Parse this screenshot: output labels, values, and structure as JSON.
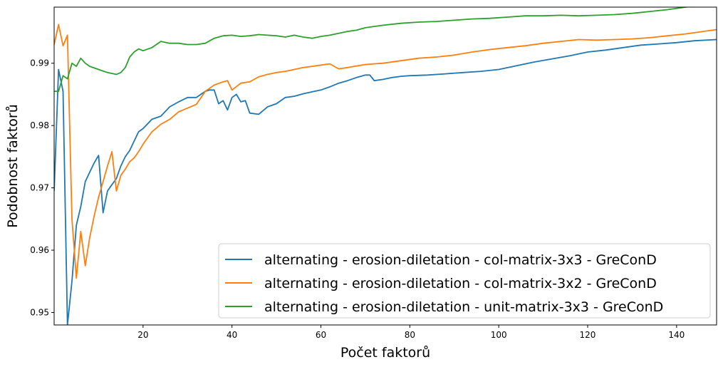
{
  "chart_data": {
    "type": "line",
    "title": "",
    "xlabel": "Počet faktorů",
    "ylabel": "Podobnost faktorů",
    "xlim": [
      0,
      149
    ],
    "ylim": [
      0.948,
      0.999
    ],
    "x_ticks": [
      20,
      40,
      60,
      80,
      100,
      120,
      140
    ],
    "y_ticks": [
      0.95,
      0.96,
      0.97,
      0.98,
      0.99
    ],
    "grid": false,
    "legend_position": "bottom-right",
    "series": [
      {
        "name": "alternating - erosion-diletation - col-matrix-3x3 - GreConD",
        "color": "#1f77b4",
        "x": [
          0,
          1,
          2,
          3,
          4,
          5,
          6,
          7,
          8,
          9,
          10,
          11,
          12,
          13,
          14,
          15,
          16,
          17,
          18,
          19,
          20,
          22,
          24,
          26,
          28,
          30,
          32,
          33,
          34,
          35,
          36,
          37,
          38,
          39,
          40,
          41,
          42,
          43,
          44,
          46,
          48,
          50,
          52,
          54,
          56,
          58,
          60,
          62,
          64,
          66,
          68,
          70,
          71,
          72,
          74,
          76,
          78,
          80,
          84,
          88,
          92,
          96,
          100,
          104,
          108,
          112,
          116,
          120,
          124,
          128,
          132,
          136,
          140,
          144,
          149
        ],
        "values": [
          0.9695,
          0.989,
          0.9855,
          0.948,
          0.955,
          0.964,
          0.967,
          0.971,
          0.9725,
          0.974,
          0.9752,
          0.966,
          0.9695,
          0.9705,
          0.9715,
          0.9735,
          0.975,
          0.976,
          0.9775,
          0.979,
          0.9795,
          0.981,
          0.9815,
          0.983,
          0.9838,
          0.9845,
          0.9845,
          0.985,
          0.9855,
          0.9857,
          0.9857,
          0.9835,
          0.984,
          0.9825,
          0.9845,
          0.985,
          0.9838,
          0.984,
          0.982,
          0.9818,
          0.983,
          0.9835,
          0.9845,
          0.9847,
          0.9851,
          0.9854,
          0.9857,
          0.9862,
          0.9868,
          0.9872,
          0.9877,
          0.9881,
          0.9881,
          0.9872,
          0.9874,
          0.9877,
          0.9879,
          0.988,
          0.9881,
          0.9883,
          0.9885,
          0.9887,
          0.989,
          0.9896,
          0.9902,
          0.9907,
          0.9912,
          0.9918,
          0.9921,
          0.9925,
          0.9929,
          0.9931,
          0.9933,
          0.9936,
          0.9938
        ]
      },
      {
        "name": "alternating - erosion-diletation - col-matrix-3x2 - GreConD",
        "color": "#ff7f0e",
        "x": [
          0,
          1,
          2,
          3,
          4,
          5,
          6,
          7,
          8,
          9,
          10,
          11,
          12,
          13,
          14,
          15,
          16,
          17,
          18,
          19,
          20,
          22,
          24,
          26,
          28,
          30,
          32,
          34,
          36,
          38,
          39,
          40,
          42,
          44,
          46,
          48,
          50,
          52,
          54,
          56,
          58,
          60,
          62,
          64,
          66,
          70,
          74,
          78,
          82,
          86,
          90,
          94,
          98,
          102,
          106,
          110,
          114,
          118,
          122,
          126,
          130,
          134,
          138,
          142,
          146,
          149
        ],
        "values": [
          0.993,
          0.9962,
          0.9928,
          0.9945,
          0.965,
          0.9555,
          0.963,
          0.9575,
          0.962,
          0.9655,
          0.9685,
          0.971,
          0.9735,
          0.9758,
          0.9695,
          0.972,
          0.973,
          0.9742,
          0.9748,
          0.9758,
          0.977,
          0.979,
          0.9802,
          0.981,
          0.9822,
          0.9828,
          0.9834,
          0.9855,
          0.9865,
          0.987,
          0.9872,
          0.9857,
          0.9868,
          0.987,
          0.9878,
          0.9882,
          0.9885,
          0.9887,
          0.989,
          0.9893,
          0.9895,
          0.9897,
          0.9899,
          0.9891,
          0.9893,
          0.9898,
          0.99,
          0.9904,
          0.9908,
          0.991,
          0.9913,
          0.9918,
          0.9922,
          0.9925,
          0.9928,
          0.9932,
          0.9935,
          0.9938,
          0.9937,
          0.9938,
          0.9939,
          0.9941,
          0.9944,
          0.9947,
          0.9951,
          0.9954
        ]
      },
      {
        "name": "alternating - erosion-diletation - unit-matrix-3x3 - GreConD",
        "color": "#2ca02c",
        "x": [
          0,
          1,
          2,
          3,
          4,
          5,
          6,
          7,
          8,
          10,
          12,
          14,
          15,
          16,
          17,
          18,
          19,
          20,
          22,
          24,
          26,
          28,
          30,
          32,
          34,
          36,
          38,
          40,
          42,
          44,
          46,
          48,
          50,
          52,
          54,
          56,
          58,
          60,
          62,
          64,
          66,
          68,
          70,
          74,
          78,
          82,
          86,
          90,
          94,
          98,
          102,
          106,
          110,
          114,
          118,
          122,
          126,
          130,
          134,
          138,
          142,
          146,
          149
        ],
        "values": [
          0.9855,
          0.9855,
          0.988,
          0.9875,
          0.99,
          0.9895,
          0.9908,
          0.99,
          0.9895,
          0.989,
          0.9885,
          0.9882,
          0.9885,
          0.9893,
          0.991,
          0.9918,
          0.9923,
          0.992,
          0.9925,
          0.9935,
          0.9932,
          0.9932,
          0.993,
          0.993,
          0.9932,
          0.994,
          0.9944,
          0.9945,
          0.9943,
          0.9944,
          0.9946,
          0.9945,
          0.9944,
          0.9942,
          0.9945,
          0.9942,
          0.994,
          0.9943,
          0.9945,
          0.9948,
          0.9951,
          0.9953,
          0.9957,
          0.9961,
          0.9964,
          0.9966,
          0.9967,
          0.9969,
          0.9971,
          0.9972,
          0.9974,
          0.9976,
          0.9976,
          0.9977,
          0.9976,
          0.9977,
          0.9978,
          0.998,
          0.9983,
          0.9986,
          0.999,
          0.9994,
          0.9997
        ]
      }
    ]
  }
}
